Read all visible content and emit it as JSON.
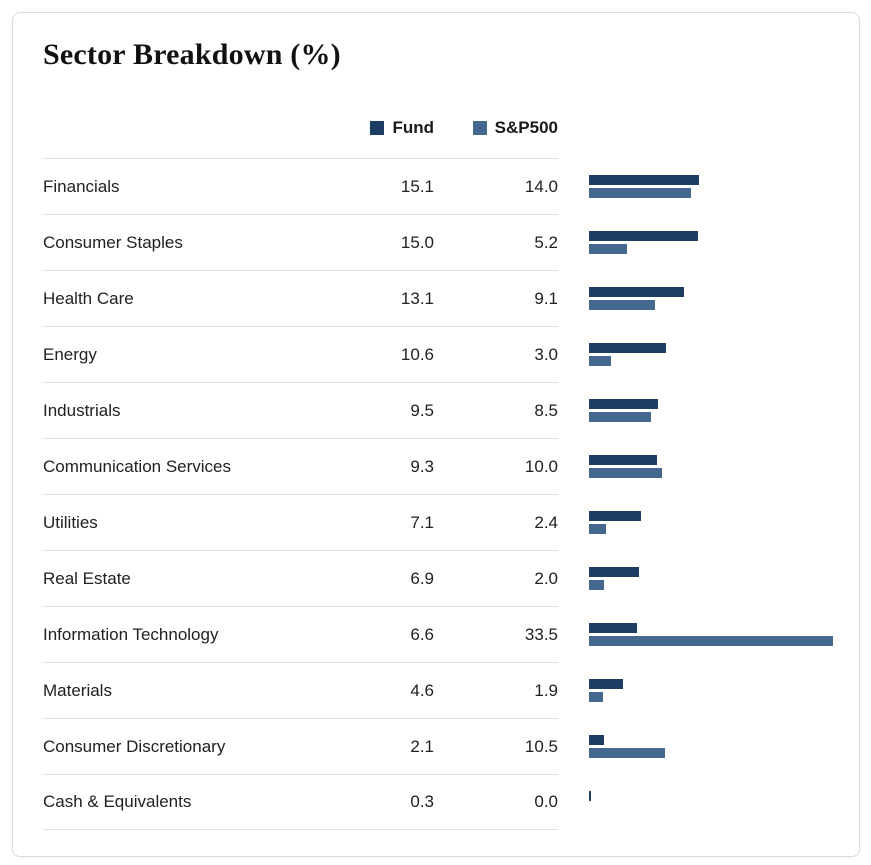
{
  "title": "Sector Breakdown (%)",
  "legend": {
    "fund_label": "Fund",
    "sp500_label": "S&P500"
  },
  "colors": {
    "fund": "#1d3e63",
    "sp500": "#44688e",
    "divider": "#e1e1e1",
    "text": "#202124"
  },
  "chart_data": {
    "type": "bar",
    "orientation": "horizontal",
    "title": "Sector Breakdown (%)",
    "categories": [
      "Financials",
      "Consumer Staples",
      "Health Care",
      "Energy",
      "Industrials",
      "Communication Services",
      "Utilities",
      "Real Estate",
      "Information Technology",
      "Materials",
      "Consumer Discretionary",
      "Cash & Equivalents"
    ],
    "series": [
      {
        "name": "Fund",
        "color": "#1d3e63",
        "values": [
          15.1,
          15.0,
          13.1,
          10.6,
          9.5,
          9.3,
          7.1,
          6.9,
          6.6,
          4.6,
          2.1,
          0.3
        ]
      },
      {
        "name": "S&P500",
        "color": "#44688e",
        "values": [
          14.0,
          5.2,
          9.1,
          3.0,
          8.5,
          10.0,
          2.4,
          2.0,
          33.5,
          1.9,
          10.5,
          0.0
        ]
      }
    ],
    "value_unit": "%",
    "xlim": [
      0,
      33.5
    ],
    "legend_position": "top",
    "grid": false
  }
}
